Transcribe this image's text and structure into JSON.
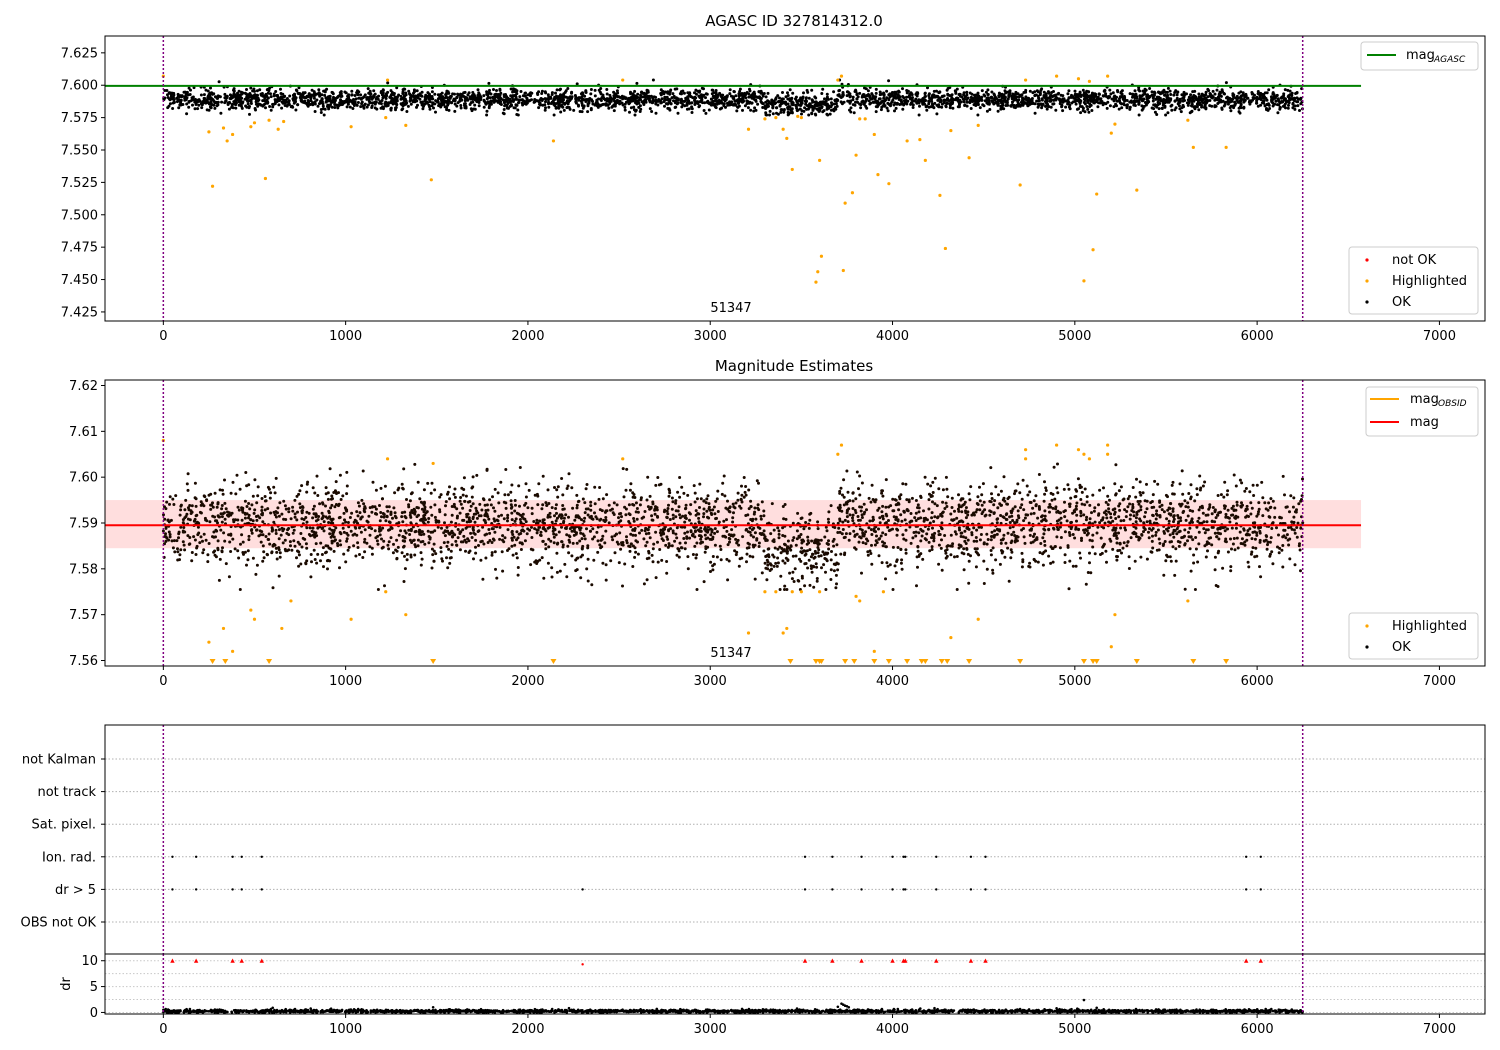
{
  "figure": {
    "background": "#ffffff"
  },
  "chart_data": [
    {
      "type": "scatter",
      "id": "agasc",
      "title": "AGASC ID 327814312.0",
      "xlim": [
        -320,
        7250
      ],
      "ylim": [
        7.418,
        7.638
      ],
      "xticks": [
        0,
        1000,
        2000,
        3000,
        4000,
        5000,
        6000,
        7000
      ],
      "yticks": [
        7.425,
        7.45,
        7.475,
        7.5,
        7.525,
        7.55,
        7.575,
        7.6,
        7.625
      ],
      "ytick_decimals": 3,
      "obsid_lines": {
        "x": [
          0,
          6250
        ],
        "color": "#800080",
        "label": "51347",
        "label_x": 3125
      },
      "reference_line": {
        "label": "mag",
        "label_sub": "AGASC",
        "y": 7.5995,
        "x_range": [
          -320,
          6570
        ],
        "color": "#008000"
      },
      "ok_band": {
        "center": 7.589,
        "half_width": 0.005,
        "noise": 0.004,
        "x_max": 6250,
        "count": 3600,
        "color": "#000000"
      },
      "highlighted_points": [
        [
          0,
          7.607
        ],
        [
          250,
          7.564
        ],
        [
          270,
          7.522
        ],
        [
          330,
          7.567
        ],
        [
          350,
          7.557
        ],
        [
          380,
          7.562
        ],
        [
          480,
          7.568
        ],
        [
          500,
          7.571
        ],
        [
          560,
          7.528
        ],
        [
          580,
          7.573
        ],
        [
          630,
          7.566
        ],
        [
          660,
          7.572
        ],
        [
          1030,
          7.568
        ],
        [
          1220,
          7.575
        ],
        [
          1230,
          7.604
        ],
        [
          1330,
          7.569
        ],
        [
          1470,
          7.527
        ],
        [
          2140,
          7.557
        ],
        [
          2520,
          7.604
        ],
        [
          3210,
          7.566
        ],
        [
          3300,
          7.574
        ],
        [
          3360,
          7.575
        ],
        [
          3400,
          7.566
        ],
        [
          3420,
          7.559
        ],
        [
          3450,
          7.535
        ],
        [
          3480,
          7.576
        ],
        [
          3500,
          7.575
        ],
        [
          3580,
          7.448
        ],
        [
          3590,
          7.456
        ],
        [
          3600,
          7.542
        ],
        [
          3610,
          7.468
        ],
        [
          3700,
          7.604
        ],
        [
          3720,
          7.607
        ],
        [
          3730,
          7.457
        ],
        [
          3740,
          7.509
        ],
        [
          3780,
          7.517
        ],
        [
          3800,
          7.546
        ],
        [
          3820,
          7.574
        ],
        [
          3850,
          7.574
        ],
        [
          3900,
          7.562
        ],
        [
          3920,
          7.531
        ],
        [
          3980,
          7.524
        ],
        [
          4080,
          7.557
        ],
        [
          4150,
          7.558
        ],
        [
          4180,
          7.542
        ],
        [
          4260,
          7.515
        ],
        [
          4290,
          7.474
        ],
        [
          4320,
          7.565
        ],
        [
          4420,
          7.544
        ],
        [
          4470,
          7.569
        ],
        [
          4700,
          7.523
        ],
        [
          4730,
          7.604
        ],
        [
          4900,
          7.607
        ],
        [
          5020,
          7.605
        ],
        [
          5050,
          7.449
        ],
        [
          5080,
          7.603
        ],
        [
          5100,
          7.473
        ],
        [
          5120,
          7.516
        ],
        [
          5180,
          7.607
        ],
        [
          5200,
          7.563
        ],
        [
          5220,
          7.57
        ],
        [
          5340,
          7.519
        ],
        [
          5620,
          7.573
        ],
        [
          5650,
          7.552
        ],
        [
          5830,
          7.552
        ]
      ],
      "series": [
        {
          "name": "not OK",
          "color": "#ff0000"
        },
        {
          "name": "Highlighted",
          "color": "#ffa500"
        },
        {
          "name": "OK",
          "color": "#000000"
        }
      ]
    },
    {
      "type": "scatter",
      "id": "mag_estimates",
      "title": "Magnitude Estimates",
      "xlim": [
        -320,
        7250
      ],
      "ylim": [
        7.5588,
        7.6212
      ],
      "xticks": [
        0,
        1000,
        2000,
        3000,
        4000,
        5000,
        6000,
        7000
      ],
      "yticks": [
        7.56,
        7.57,
        7.58,
        7.59,
        7.6,
        7.61,
        7.62
      ],
      "ytick_decimals": 2,
      "obsid_lines": {
        "x": [
          0,
          6250
        ],
        "color": "#800080",
        "label": "51347",
        "label_x": 3125
      },
      "mag_line": {
        "label": "mag",
        "y": 7.5895,
        "x_range": [
          -320,
          6570
        ],
        "color": "#ff0000"
      },
      "mag_obsid": {
        "label": "mag",
        "label_sub": "OBSID",
        "color": "#ffa500"
      },
      "mag_band": {
        "low": 7.5845,
        "high": 7.595,
        "x_range": [
          -320,
          6570
        ],
        "color": "#ffb6b6"
      },
      "ok_band": {
        "center": 7.5895,
        "half_width": 0.006,
        "noise": 0.006,
        "x_max": 6250,
        "count": 3600,
        "color": "#000000"
      },
      "highlighted_points": [
        [
          0,
          7.608
        ],
        [
          250,
          7.564
        ],
        [
          330,
          7.567
        ],
        [
          380,
          7.562
        ],
        [
          480,
          7.571
        ],
        [
          500,
          7.569
        ],
        [
          650,
          7.567
        ],
        [
          700,
          7.573
        ],
        [
          1030,
          7.569
        ],
        [
          1220,
          7.575
        ],
        [
          1230,
          7.604
        ],
        [
          1330,
          7.57
        ],
        [
          1480,
          7.603
        ],
        [
          2520,
          7.604
        ],
        [
          3210,
          7.566
        ],
        [
          3300,
          7.575
        ],
        [
          3360,
          7.575
        ],
        [
          3400,
          7.566
        ],
        [
          3420,
          7.567
        ],
        [
          3450,
          7.575
        ],
        [
          3500,
          7.575
        ],
        [
          3600,
          7.575
        ],
        [
          3700,
          7.605
        ],
        [
          3720,
          7.607
        ],
        [
          3800,
          7.574
        ],
        [
          3820,
          7.573
        ],
        [
          3900,
          7.562
        ],
        [
          3950,
          7.575
        ],
        [
          4320,
          7.565
        ],
        [
          4470,
          7.569
        ],
        [
          4730,
          7.606
        ],
        [
          4730,
          7.604
        ],
        [
          4900,
          7.607
        ],
        [
          5020,
          7.606
        ],
        [
          5050,
          7.605
        ],
        [
          5080,
          7.604
        ],
        [
          5180,
          7.607
        ],
        [
          5180,
          7.605
        ],
        [
          5200,
          7.563
        ],
        [
          5220,
          7.57
        ],
        [
          5620,
          7.573
        ]
      ],
      "clipped_points_x": [
        270,
        340,
        580,
        1480,
        2140,
        3440,
        3580,
        3600,
        3610,
        3740,
        3790,
        3900,
        3980,
        4080,
        4160,
        4180,
        4270,
        4300,
        4420,
        4700,
        5050,
        5100,
        5120,
        5340,
        5650,
        5830
      ],
      "series": [
        {
          "name": "Highlighted",
          "color": "#ffa500"
        },
        {
          "name": "OK",
          "color": "#000000"
        }
      ]
    },
    {
      "type": "scatter",
      "id": "flags",
      "xlim": [
        -320,
        7250
      ],
      "categories": [
        "not Kalman",
        "not track",
        "Sat. pixel.",
        "Ion. rad.",
        "dr > 5",
        "OBS not OK"
      ],
      "flag_points": {
        "Ion. rad.": [
          50,
          180,
          380,
          430,
          540,
          3520,
          3670,
          3830,
          4000,
          4060,
          4070,
          4240,
          4430,
          4510,
          5940,
          6020
        ],
        "dr > 5": [
          50,
          180,
          380,
          430,
          540,
          2300,
          3520,
          3670,
          3830,
          4000,
          4060,
          4070,
          4240,
          4430,
          4510,
          5940,
          6020
        ]
      },
      "obsid_lines": {
        "x": [
          0,
          6250
        ],
        "color": "#800080"
      }
    },
    {
      "type": "scatter",
      "id": "dr",
      "ylabel": "dr",
      "xlim": [
        -320,
        7250
      ],
      "ylim": [
        -0.3,
        11.3
      ],
      "xticks": [
        0,
        1000,
        2000,
        3000,
        4000,
        5000,
        6000,
        7000
      ],
      "yticks": [
        0,
        5,
        10
      ],
      "red_markers_x": [
        50,
        180,
        380,
        430,
        540,
        3520,
        3670,
        3830,
        4000,
        4060,
        4070,
        4240,
        4430,
        4510,
        5940,
        6020
      ],
      "red_marker_y": 10,
      "extra_red_points": [
        [
          2300,
          9.3
        ]
      ],
      "baseline": {
        "center": 0.25,
        "noise": 0.15,
        "x_max": 6250,
        "count": 2600
      },
      "outliers": [
        [
          600,
          0.9
        ],
        [
          1480,
          1.0
        ],
        [
          3720,
          1.7
        ],
        [
          3730,
          1.5
        ],
        [
          3740,
          1.3
        ],
        [
          3750,
          1.2
        ],
        [
          3760,
          1.0
        ],
        [
          3700,
          1.1
        ],
        [
          5050,
          2.4
        ],
        [
          4900,
          0.8
        ],
        [
          5120,
          0.9
        ]
      ],
      "obsid_lines": {
        "x": [
          0,
          6250
        ],
        "color": "#800080"
      }
    }
  ]
}
